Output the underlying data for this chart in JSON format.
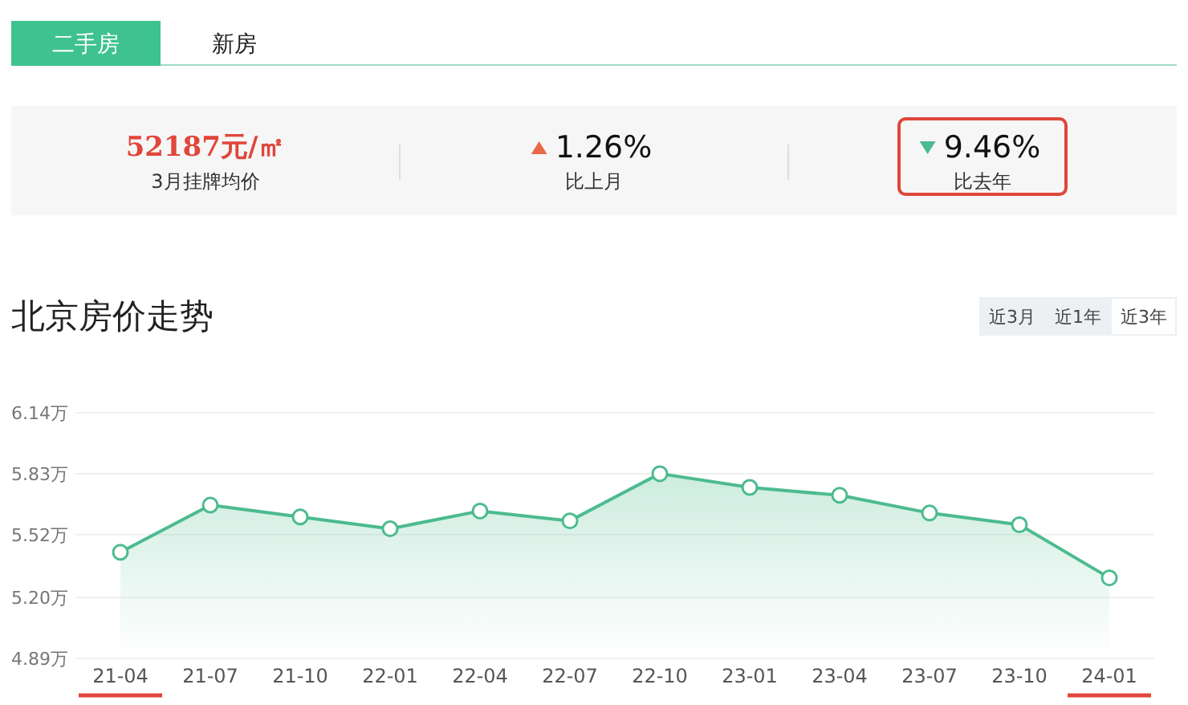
{
  "chart_data": [
    {
      "type": "other",
      "annotations": [
        "二手房",
        "新房",
        "52187元/㎡",
        "3月挂牌均价",
        "1.26%",
        "比上月",
        "9.46%",
        "比去年"
      ]
    },
    {
      "type": "area",
      "title": "北京房价走势",
      "annotations": [
        "近3月",
        "近1年",
        "近3年"
      ],
      "categories": [
        "21-04",
        "21-07",
        "21-10",
        "22-01",
        "22-04",
        "22-07",
        "22-10",
        "23-01",
        "23-04",
        "23-07",
        "23-10",
        "24-01"
      ],
      "values": [
        5.43,
        5.67,
        5.61,
        5.55,
        5.64,
        5.59,
        5.83,
        5.76,
        5.72,
        5.63,
        5.57,
        5.3
      ],
      "color": "#4cbb8f",
      "ylim": [
        4.89,
        6.14
      ],
      "yticks": [
        {
          "value": 4.89,
          "label": "4.89万"
        },
        {
          "value": 5.2,
          "label": "5.20万"
        },
        {
          "value": 5.52,
          "label": "5.52万"
        },
        {
          "value": 5.83,
          "label": "5.83万"
        },
        {
          "value": 6.14,
          "label": "6.14万"
        }
      ],
      "grid": "y",
      "marker": "circle"
    }
  ]
}
